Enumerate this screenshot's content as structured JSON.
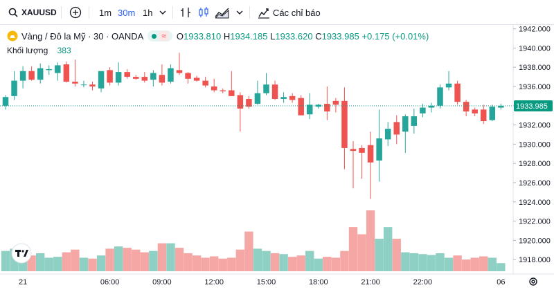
{
  "toolbar": {
    "symbol": "XAUUSD",
    "intervals": [
      "1m",
      "30m",
      "1h"
    ],
    "active_interval": "30m",
    "indicators_label": "Các chỉ báo"
  },
  "legend": {
    "title": "Vàng / Đô la Mỹ · 30 · OANDA",
    "status_symbol": "≈",
    "o_label": "O",
    "o": "1933.810",
    "h_label": "H",
    "h": "1934.185",
    "l_label": "L",
    "l": "1933.620",
    "c_label": "C",
    "c": "1933.985",
    "change": "+0.175 (+0.01%)",
    "volume_label": "Khối lượng",
    "volume_value": "383"
  },
  "colors": {
    "up": "#26a69a",
    "down": "#ef5350",
    "vol_up": "#8fd0c5",
    "vol_down": "#f4a7a5",
    "accent": "#2962ff"
  },
  "chart_data": {
    "type": "candlestick",
    "ylim": [
      1916.5,
      1942.4
    ],
    "yticks": [
      "1942.000",
      "1940.000",
      "1938.000",
      "1936.000",
      "1934.000",
      "1932.000",
      "1930.000",
      "1928.000",
      "1926.000",
      "1924.000",
      "1922.000",
      "1920.000",
      "1918.000"
    ],
    "xticks": [
      {
        "i": 2,
        "label": "21"
      },
      {
        "i": 12,
        "label": "06:00"
      },
      {
        "i": 18,
        "label": "09:00"
      },
      {
        "i": 24,
        "label": "12:00"
      },
      {
        "i": 30,
        "label": "15:00"
      },
      {
        "i": 36,
        "label": "18:00"
      },
      {
        "i": 42,
        "label": "21:00"
      },
      {
        "i": 48,
        "label": "22:00"
      },
      {
        "i": 57,
        "label": "06"
      }
    ],
    "last_price": "1933.985",
    "last_value": 1933.985,
    "candles": [
      {
        "o": 1934.0,
        "h": 1935.1,
        "l": 1933.6,
        "c": 1934.9,
        "v": 45
      },
      {
        "o": 1935.0,
        "h": 1937.6,
        "l": 1934.6,
        "c": 1936.6,
        "v": 50
      },
      {
        "o": 1936.6,
        "h": 1938.1,
        "l": 1935.8,
        "c": 1937.6,
        "v": 52
      },
      {
        "o": 1937.6,
        "h": 1938.1,
        "l": 1936.6,
        "c": 1936.7,
        "v": 35
      },
      {
        "o": 1936.7,
        "h": 1938.4,
        "l": 1936.3,
        "c": 1937.9,
        "v": 40
      },
      {
        "o": 1937.7,
        "h": 1938.2,
        "l": 1937.2,
        "c": 1937.8,
        "v": 30
      },
      {
        "o": 1937.4,
        "h": 1938.5,
        "l": 1936.6,
        "c": 1938.2,
        "v": 32
      },
      {
        "o": 1938.3,
        "h": 1938.6,
        "l": 1936.4,
        "c": 1936.5,
        "v": 42
      },
      {
        "o": 1936.5,
        "h": 1938.8,
        "l": 1936.0,
        "c": 1936.3,
        "v": 48
      },
      {
        "o": 1936.2,
        "h": 1936.6,
        "l": 1935.9,
        "c": 1936.2,
        "v": 30
      },
      {
        "o": 1936.2,
        "h": 1936.5,
        "l": 1935.6,
        "c": 1936.0,
        "v": 28
      },
      {
        "o": 1935.8,
        "h": 1937.6,
        "l": 1935.4,
        "c": 1937.6,
        "v": 35
      },
      {
        "o": 1937.7,
        "h": 1938.0,
        "l": 1936.1,
        "c": 1936.4,
        "v": 50
      },
      {
        "o": 1936.4,
        "h": 1938.5,
        "l": 1936.1,
        "c": 1937.5,
        "v": 55
      },
      {
        "o": 1937.5,
        "h": 1937.8,
        "l": 1936.8,
        "c": 1937.0,
        "v": 52
      },
      {
        "o": 1937.0,
        "h": 1937.2,
        "l": 1936.7,
        "c": 1936.8,
        "v": 48
      },
      {
        "o": 1937.0,
        "h": 1937.5,
        "l": 1936.4,
        "c": 1936.6,
        "v": 42
      },
      {
        "o": 1936.7,
        "h": 1937.7,
        "l": 1936.0,
        "c": 1937.4,
        "v": 45
      },
      {
        "o": 1937.2,
        "h": 1938.3,
        "l": 1936.1,
        "c": 1936.4,
        "v": 62
      },
      {
        "o": 1936.5,
        "h": 1938.3,
        "l": 1936.3,
        "c": 1937.9,
        "v": 62
      },
      {
        "o": 1937.7,
        "h": 1939.5,
        "l": 1937.2,
        "c": 1937.4,
        "v": 52
      },
      {
        "o": 1937.4,
        "h": 1937.5,
        "l": 1936.3,
        "c": 1936.8,
        "v": 40
      },
      {
        "o": 1936.9,
        "h": 1937.1,
        "l": 1936.5,
        "c": 1936.6,
        "v": 35
      },
      {
        "o": 1936.6,
        "h": 1937.0,
        "l": 1935.9,
        "c": 1936.1,
        "v": 30
      },
      {
        "o": 1936.0,
        "h": 1936.8,
        "l": 1935.4,
        "c": 1935.6,
        "v": 33
      },
      {
        "o": 1935.6,
        "h": 1935.8,
        "l": 1935.3,
        "c": 1935.5,
        "v": 28
      },
      {
        "o": 1935.6,
        "h": 1937.6,
        "l": 1935.0,
        "c": 1935.0,
        "v": 30
      },
      {
        "o": 1935.1,
        "h": 1935.4,
        "l": 1931.3,
        "c": 1933.7,
        "v": 48
      },
      {
        "o": 1934.7,
        "h": 1935.0,
        "l": 1933.7,
        "c": 1933.9,
        "v": 88
      },
      {
        "o": 1934.2,
        "h": 1936.6,
        "l": 1934.1,
        "c": 1935.3,
        "v": 50
      },
      {
        "o": 1935.3,
        "h": 1937.4,
        "l": 1935.1,
        "c": 1936.2,
        "v": 45
      },
      {
        "o": 1936.2,
        "h": 1936.6,
        "l": 1934.6,
        "c": 1934.7,
        "v": 40
      },
      {
        "o": 1934.7,
        "h": 1935.4,
        "l": 1934.3,
        "c": 1934.9,
        "v": 38
      },
      {
        "o": 1935.0,
        "h": 1935.3,
        "l": 1934.3,
        "c": 1934.6,
        "v": 32
      },
      {
        "o": 1934.8,
        "h": 1935.1,
        "l": 1933.0,
        "c": 1933.0,
        "v": 35
      },
      {
        "o": 1933.1,
        "h": 1935.3,
        "l": 1932.6,
        "c": 1934.1,
        "v": 45
      },
      {
        "o": 1933.9,
        "h": 1934.2,
        "l": 1933.7,
        "c": 1934.1,
        "v": 28
      },
      {
        "o": 1934.2,
        "h": 1936.0,
        "l": 1932.5,
        "c": 1933.4,
        "v": 32
      },
      {
        "o": 1934.5,
        "h": 1934.8,
        "l": 1933.3,
        "c": 1934.1,
        "v": 30
      },
      {
        "o": 1934.5,
        "h": 1935.9,
        "l": 1927.4,
        "c": 1929.6,
        "v": 45
      },
      {
        "o": 1929.5,
        "h": 1930.3,
        "l": 1925.4,
        "c": 1929.3,
        "v": 98
      },
      {
        "o": 1929.6,
        "h": 1929.9,
        "l": 1926.4,
        "c": 1929.1,
        "v": 82
      },
      {
        "o": 1929.9,
        "h": 1931.3,
        "l": 1924.3,
        "c": 1928.1,
        "v": 135
      },
      {
        "o": 1928.3,
        "h": 1933.6,
        "l": 1926.1,
        "c": 1930.6,
        "v": 72
      },
      {
        "o": 1930.5,
        "h": 1932.3,
        "l": 1929.8,
        "c": 1931.6,
        "v": 98
      },
      {
        "o": 1932.3,
        "h": 1933.0,
        "l": 1930.0,
        "c": 1931.0,
        "v": 72
      },
      {
        "o": 1931.3,
        "h": 1933.1,
        "l": 1929.1,
        "c": 1932.9,
        "v": 42
      },
      {
        "o": 1931.9,
        "h": 1933.7,
        "l": 1931.1,
        "c": 1932.9,
        "v": 40
      },
      {
        "o": 1933.2,
        "h": 1934.2,
        "l": 1932.8,
        "c": 1933.8,
        "v": 38
      },
      {
        "o": 1933.8,
        "h": 1934.3,
        "l": 1933.3,
        "c": 1934.0,
        "v": 36
      },
      {
        "o": 1934.0,
        "h": 1936.2,
        "l": 1933.7,
        "c": 1935.9,
        "v": 40
      },
      {
        "o": 1935.9,
        "h": 1937.6,
        "l": 1935.6,
        "c": 1936.3,
        "v": 30
      },
      {
        "o": 1936.3,
        "h": 1936.6,
        "l": 1934.1,
        "c": 1934.4,
        "v": 35
      },
      {
        "o": 1934.4,
        "h": 1934.6,
        "l": 1932.9,
        "c": 1933.4,
        "v": 26
      },
      {
        "o": 1933.6,
        "h": 1933.8,
        "l": 1932.9,
        "c": 1933.2,
        "v": 30
      },
      {
        "o": 1933.6,
        "h": 1934.1,
        "l": 1932.1,
        "c": 1932.4,
        "v": 33
      },
      {
        "o": 1932.5,
        "h": 1934.1,
        "l": 1932.4,
        "c": 1933.9,
        "v": 30
      },
      {
        "o": 1933.8,
        "h": 1934.2,
        "l": 1933.6,
        "c": 1934.0,
        "v": 18
      }
    ]
  }
}
